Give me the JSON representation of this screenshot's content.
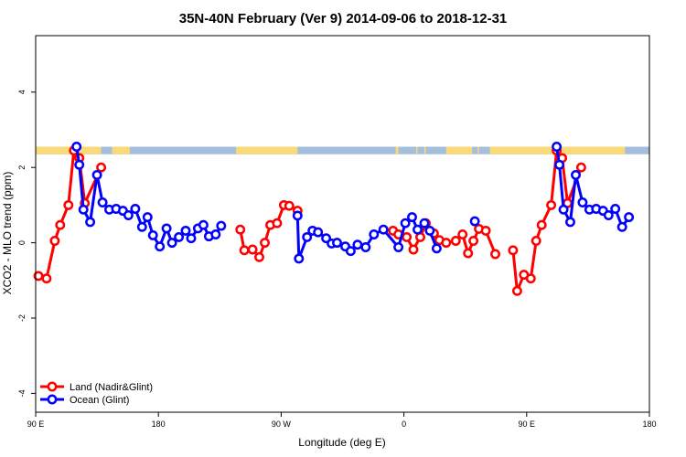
{
  "chart_data": {
    "type": "line",
    "title": "35N-40N February (Ver 9)   2014-09-06 to 2018-12-31",
    "xlabel": "Longitude (deg E)",
    "ylabel": "XCO2 - MLO trend (ppm)",
    "xlim": [
      90,
      540
    ],
    "ylim": [
      -4.5,
      5.5
    ],
    "x_ticks": [
      {
        "value": 90,
        "label": "90 E"
      },
      {
        "value": 180,
        "label": "180"
      },
      {
        "value": 270,
        "label": "90 W"
      },
      {
        "value": 360,
        "label": "0"
      },
      {
        "value": 450,
        "label": "90 E"
      },
      {
        "value": 540,
        "label": "180"
      }
    ],
    "y_ticks": [
      {
        "value": -4,
        "label": "-4"
      },
      {
        "value": -2,
        "label": "-2"
      },
      {
        "value": 0,
        "label": "0"
      },
      {
        "value": 2,
        "label": "2"
      },
      {
        "value": 4,
        "label": "4"
      }
    ],
    "grid": false,
    "legend_position": "bottom-left",
    "surface_band": {
      "y_range": [
        2.35,
        2.55
      ],
      "land_color": "#F9D978",
      "ocean_color": "#A4BEDC",
      "land_segments": [
        [
          90,
          116
        ],
        [
          118,
          138
        ],
        [
          146,
          159
        ],
        [
          237,
          282
        ],
        [
          354,
          356
        ],
        [
          369,
          370
        ],
        [
          375,
          376
        ],
        [
          391,
          410
        ],
        [
          414,
          415
        ],
        [
          423,
          522
        ]
      ]
    },
    "series": [
      {
        "name": "Land (Nadir&Glint)",
        "color": "#FF0000",
        "segments": [
          [
            [
              92,
              -0.88
            ],
            [
              98,
              -0.95
            ],
            [
              104,
              0.05
            ],
            [
              108,
              0.47
            ],
            [
              114,
              1.0
            ],
            [
              118,
              2.45
            ],
            [
              122,
              2.25
            ],
            [
              126,
              1.05
            ],
            [
              138,
              2.0
            ]
          ],
          [
            [
              240,
              0.35
            ],
            [
              243,
              -0.2
            ],
            [
              249,
              -0.18
            ],
            [
              254,
              -0.38
            ],
            [
              258,
              0.0
            ],
            [
              262,
              0.47
            ],
            [
              267,
              0.52
            ],
            [
              272,
              1.0
            ],
            [
              276,
              0.98
            ],
            [
              282,
              0.85
            ]
          ],
          [
            [
              352,
              0.32
            ],
            [
              356,
              0.22
            ],
            [
              362,
              0.15
            ],
            [
              367,
              -0.18
            ],
            [
              372,
              0.15
            ],
            [
              376,
              0.52
            ],
            [
              382,
              0.25
            ],
            [
              386,
              0.07
            ],
            [
              391,
              0.0
            ],
            [
              398,
              0.05
            ],
            [
              403,
              0.22
            ],
            [
              407,
              -0.28
            ],
            [
              411,
              0.05
            ],
            [
              415,
              0.37
            ],
            [
              420,
              0.32
            ],
            [
              427,
              -0.3
            ]
          ],
          [
            [
              440,
              -0.2
            ],
            [
              443,
              -1.28
            ],
            [
              448,
              -0.85
            ],
            [
              453,
              -0.95
            ],
            [
              457,
              0.05
            ],
            [
              461,
              0.47
            ],
            [
              468,
              1.0
            ],
            [
              472,
              2.45
            ],
            [
              476,
              2.25
            ],
            [
              480,
              1.05
            ],
            [
              490,
              2.0
            ]
          ]
        ]
      },
      {
        "name": "Ocean (Glint)",
        "color": "#0000FF",
        "segments": [
          [
            [
              120,
              2.55
            ],
            [
              122,
              2.07
            ],
            [
              125,
              0.88
            ],
            [
              130,
              0.55
            ],
            [
              135,
              1.8
            ],
            [
              139,
              1.07
            ],
            [
              144,
              0.88
            ],
            [
              149,
              0.9
            ],
            [
              154,
              0.85
            ],
            [
              158,
              0.73
            ],
            [
              163,
              0.9
            ],
            [
              168,
              0.42
            ],
            [
              172,
              0.68
            ],
            [
              176,
              0.2
            ],
            [
              181,
              -0.1
            ],
            [
              186,
              0.38
            ],
            [
              190,
              0.0
            ],
            [
              195,
              0.15
            ],
            [
              200,
              0.32
            ],
            [
              204,
              0.12
            ],
            [
              209,
              0.38
            ],
            [
              213,
              0.47
            ],
            [
              217,
              0.17
            ],
            [
              222,
              0.22
            ],
            [
              226,
              0.45
            ]
          ],
          [
            [
              282,
              0.72
            ],
            [
              283,
              -0.42
            ],
            [
              289,
              0.15
            ],
            [
              293,
              0.32
            ],
            [
              297,
              0.28
            ],
            [
              303,
              0.12
            ],
            [
              307,
              -0.02
            ],
            [
              311,
              0.0
            ],
            [
              317,
              -0.1
            ],
            [
              321,
              -0.22
            ],
            [
              326,
              -0.05
            ],
            [
              332,
              -0.12
            ],
            [
              338,
              0.22
            ],
            [
              345,
              0.35
            ],
            [
              356,
              -0.12
            ],
            [
              361,
              0.52
            ],
            [
              366,
              0.68
            ],
            [
              370,
              0.35
            ],
            [
              375,
              0.52
            ],
            [
              379,
              0.32
            ],
            [
              384,
              -0.15
            ]
          ],
          [
            [
              412,
              0.57
            ]
          ],
          [
            [
              472,
              2.55
            ],
            [
              474,
              2.07
            ],
            [
              477,
              0.88
            ],
            [
              482,
              0.55
            ],
            [
              486,
              1.8
            ],
            [
              491,
              1.07
            ],
            [
              496,
              0.88
            ],
            [
              501,
              0.9
            ],
            [
              506,
              0.85
            ],
            [
              510,
              0.73
            ],
            [
              515,
              0.9
            ],
            [
              520,
              0.42
            ],
            [
              525,
              0.68
            ]
          ]
        ]
      }
    ]
  }
}
